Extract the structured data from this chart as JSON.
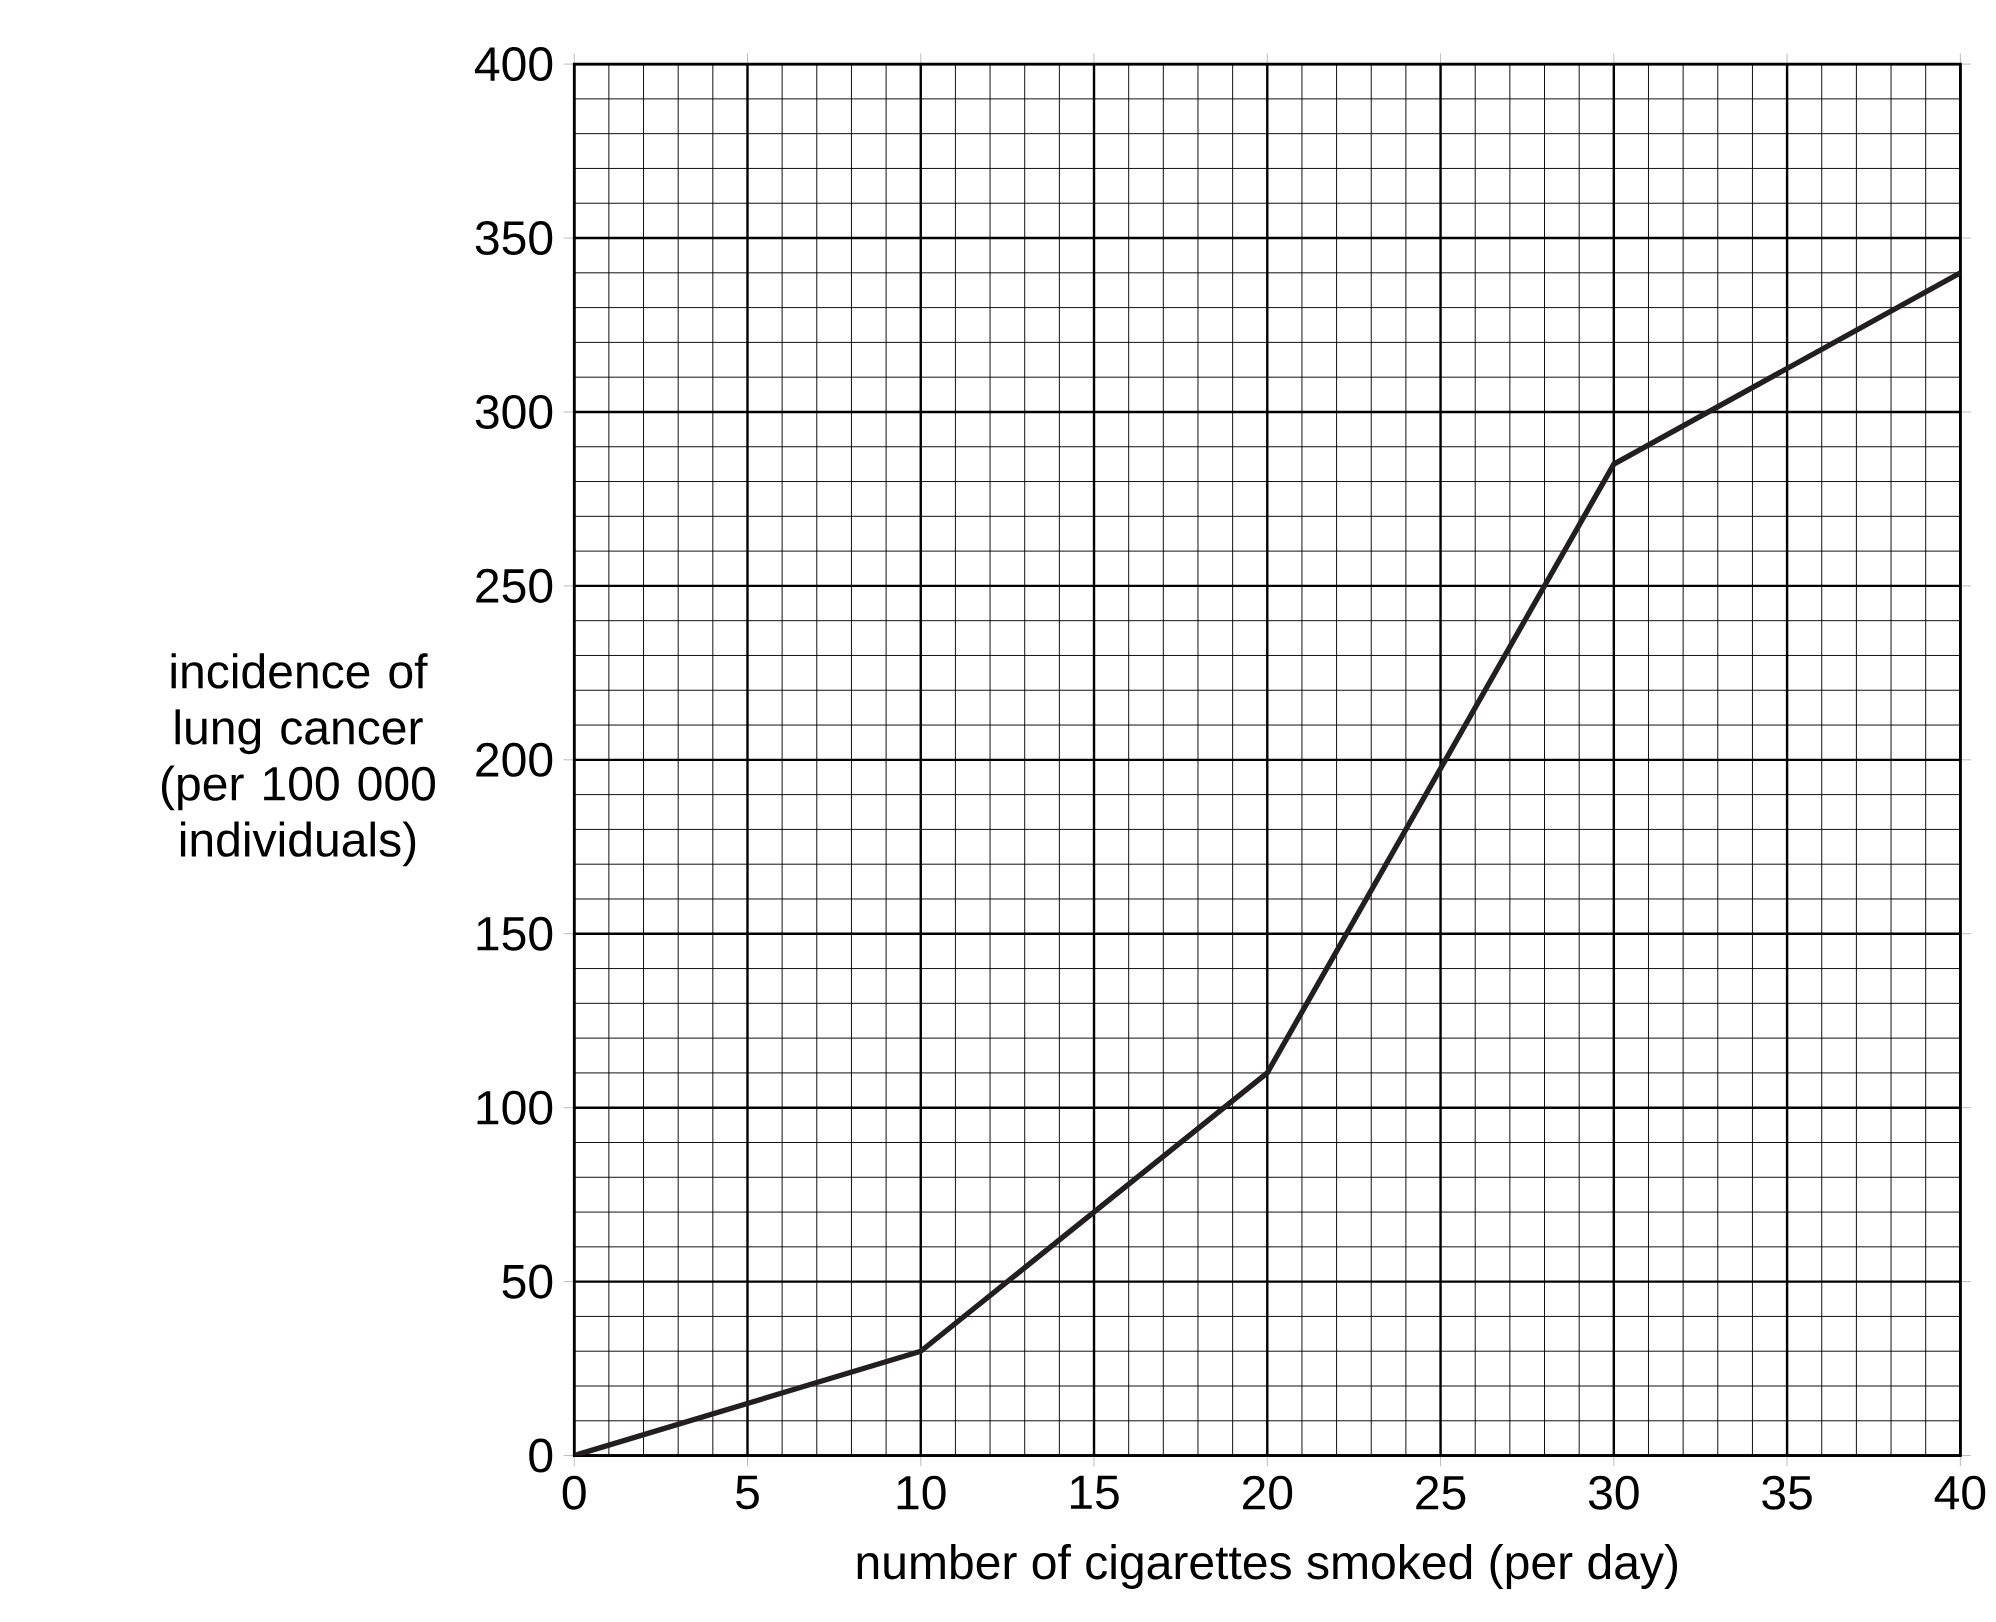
{
  "chart_data": {
    "type": "line",
    "xlabel": "number of cigarettes smoked (per day)",
    "ylabel": "incidence of lung cancer (per 100 000 individuals)",
    "x": [
      0,
      10,
      20,
      30,
      40
    ],
    "values": [
      0,
      30,
      110,
      285,
      340
    ],
    "color": "#231f20",
    "xlim": [
      0,
      40
    ],
    "ylim": [
      0,
      400
    ],
    "xticks": [
      0,
      5,
      10,
      15,
      20,
      25,
      30,
      35,
      40
    ],
    "yticks": [
      0,
      50,
      100,
      150,
      200,
      250,
      300,
      350,
      400
    ],
    "grid": true
  }
}
